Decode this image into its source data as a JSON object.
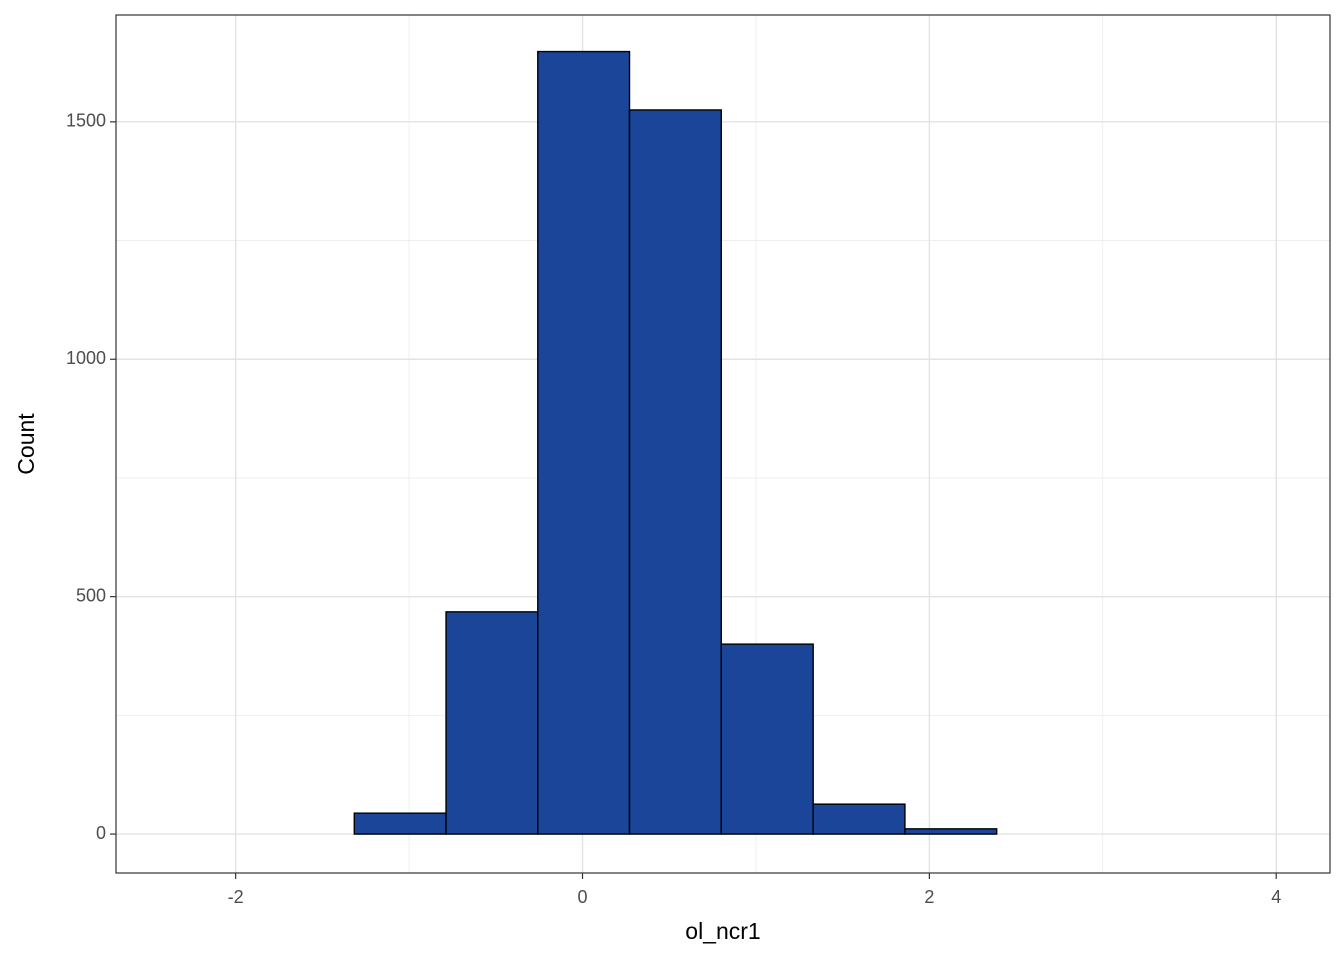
{
  "chart_data": {
    "type": "histogram",
    "x_label": "ol_ncr1",
    "y_label": "Count",
    "bins": [
      -2.375,
      -1.846,
      -1.316,
      -0.787,
      -0.258,
      0.271,
      0.8,
      1.33,
      1.859,
      2.388,
      2.917,
      3.447,
      3.976
    ],
    "values": [
      0,
      0,
      44,
      468,
      1648,
      1525,
      400,
      63,
      11,
      0,
      0,
      0
    ],
    "color": "#1a4599",
    "edge_color": "#000000",
    "xlim": [
      -2.69,
      4.31
    ],
    "ylim": [
      -82,
      1725
    ],
    "xticks": [
      -2,
      0,
      2,
      4
    ],
    "yticks": [
      0,
      500,
      1000,
      1500
    ],
    "x_minor_ticks": [
      -1,
      1,
      3
    ],
    "y_minor_ticks": [
      250,
      750,
      1250
    ],
    "grid": true
  }
}
